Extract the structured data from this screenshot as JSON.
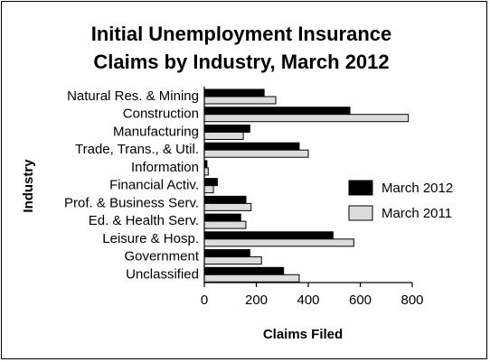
{
  "chart_data": {
    "type": "bar",
    "orientation": "horizontal",
    "title_lines": [
      "Initial Unemployment Insurance",
      "Claims by Industry, March 2012"
    ],
    "xlabel": "Claims Filed",
    "ylabel": "Industry",
    "xlim": [
      0,
      800
    ],
    "xticks": [
      "0",
      "200",
      "400",
      "600",
      "800"
    ],
    "grid": false,
    "legend_position": "right",
    "categories": [
      "Natural Res. & Mining",
      "Construction",
      "Manufacturing",
      "Trade, Trans., & Util.",
      "Information",
      "Financial Activ.",
      "Prof. & Business Serv.",
      "Ed. & Health Serv.",
      "Leisure & Hosp.",
      "Government",
      "Unclassified"
    ],
    "series": [
      {
        "name": "March 2012",
        "color": "#000000",
        "values": [
          230,
          560,
          175,
          365,
          10,
          50,
          160,
          140,
          495,
          175,
          305
        ]
      },
      {
        "name": "March 2011",
        "color": "#dcdcdc",
        "values": [
          275,
          785,
          150,
          400,
          15,
          35,
          180,
          160,
          575,
          220,
          365
        ]
      }
    ]
  }
}
